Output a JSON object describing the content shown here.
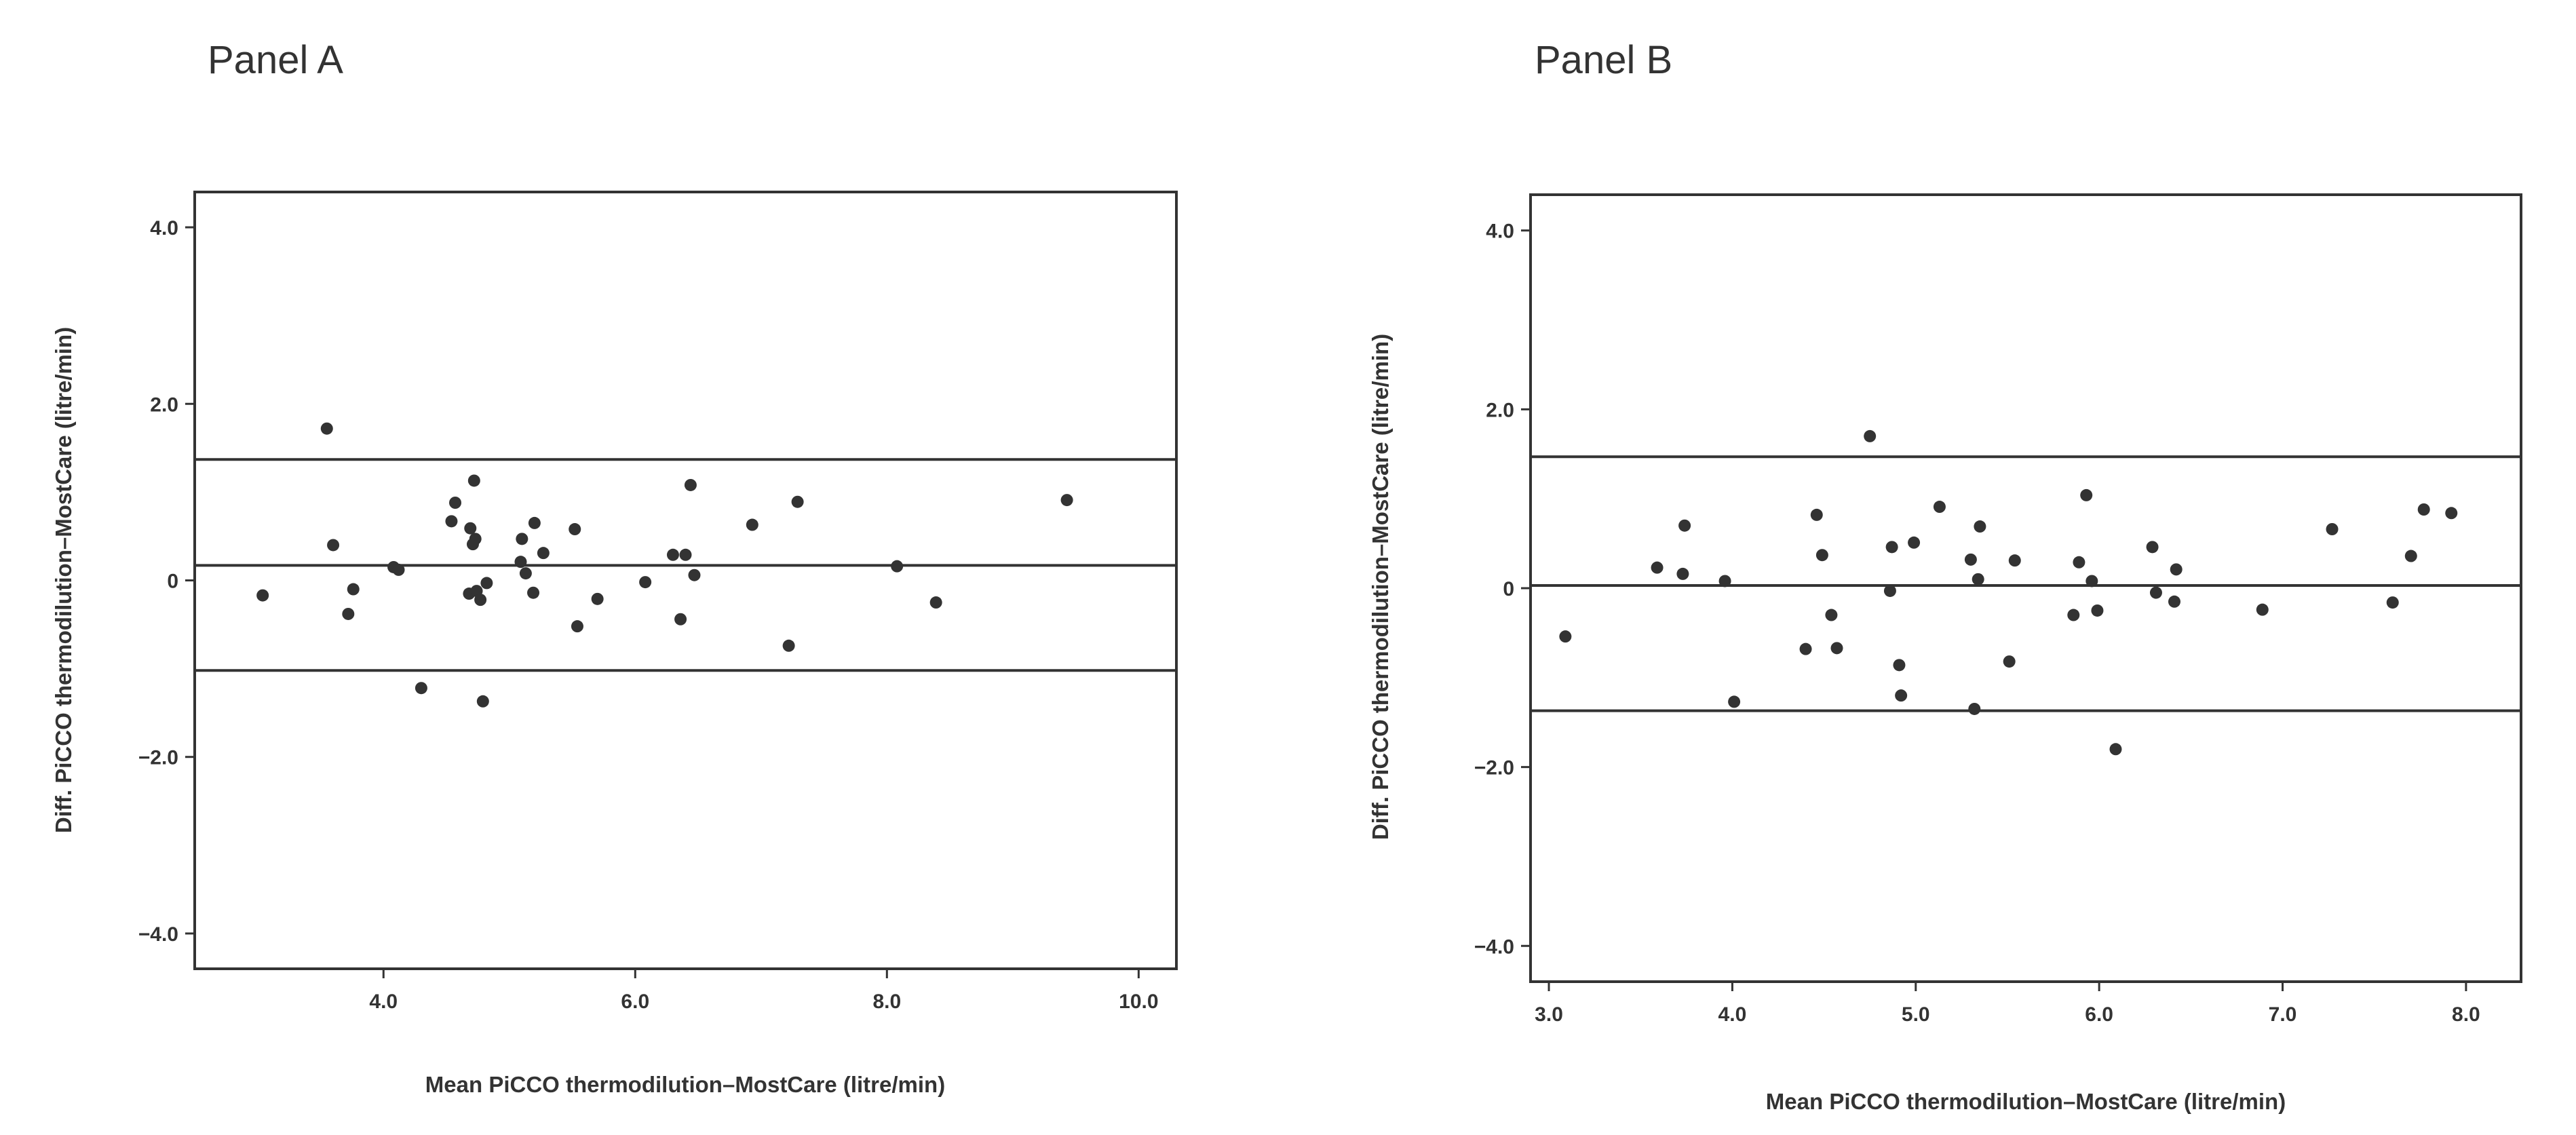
{
  "colors": {
    "ink": "#333333",
    "background": "#ffffff"
  },
  "chart_data": [
    {
      "type": "scatter",
      "panel_label": "Panel A",
      "xlabel": "Mean PiCCO thermodilution–MostCare (litre/min)",
      "ylabel": "Diff. PiCCO thermodilution–MostCare (litre/min)",
      "xlim": [
        2.5,
        10.3
      ],
      "ylim": [
        -4.4,
        4.4
      ],
      "xticks": [
        "4.0",
        "6.0",
        "8.0",
        "10.0"
      ],
      "yticks": [
        "4.0",
        "2.0",
        "0",
        "−2.0",
        "−4.0"
      ],
      "xtick_values": [
        4,
        6,
        8,
        10
      ],
      "ytick_values": [
        4,
        2,
        0,
        -2,
        -4
      ],
      "grid": false,
      "reference_lines": [
        1.37,
        0.17,
        -1.02
      ],
      "points": [
        [
          3.04,
          -0.17
        ],
        [
          3.55,
          1.72
        ],
        [
          3.6,
          0.4
        ],
        [
          3.72,
          -0.38
        ],
        [
          3.76,
          -0.1
        ],
        [
          4.08,
          0.15
        ],
        [
          4.12,
          0.12
        ],
        [
          4.3,
          -1.22
        ],
        [
          4.54,
          0.67
        ],
        [
          4.57,
          0.88
        ],
        [
          4.68,
          -0.15
        ],
        [
          4.69,
          0.59
        ],
        [
          4.71,
          0.41
        ],
        [
          4.72,
          1.13
        ],
        [
          4.73,
          0.47
        ],
        [
          4.74,
          -0.12
        ],
        [
          4.77,
          -0.22
        ],
        [
          4.79,
          -1.37
        ],
        [
          4.82,
          -0.03
        ],
        [
          5.09,
          0.21
        ],
        [
          5.1,
          0.47
        ],
        [
          5.13,
          0.08
        ],
        [
          5.19,
          -0.14
        ],
        [
          5.2,
          0.65
        ],
        [
          5.27,
          0.31
        ],
        [
          5.52,
          0.58
        ],
        [
          5.54,
          -0.52
        ],
        [
          5.7,
          -0.21
        ],
        [
          6.08,
          -0.02
        ],
        [
          6.3,
          0.29
        ],
        [
          6.36,
          -0.44
        ],
        [
          6.4,
          0.29
        ],
        [
          6.44,
          1.08
        ],
        [
          6.47,
          0.06
        ],
        [
          6.93,
          0.63
        ],
        [
          7.22,
          -0.74
        ],
        [
          7.29,
          0.89
        ],
        [
          8.08,
          0.16
        ],
        [
          8.39,
          -0.25
        ],
        [
          9.43,
          0.91
        ]
      ]
    },
    {
      "type": "scatter",
      "panel_label": "Panel B",
      "xlabel": "Mean PiCCO thermodilution–MostCare (litre/min)",
      "ylabel": "Diff. PiCCO thermodilution–MostCare (litre/min)",
      "xlim": [
        2.9,
        8.3
      ],
      "ylim": [
        -4.4,
        4.4
      ],
      "xticks": [
        "3.0",
        "4.0",
        "5.0",
        "6.0",
        "7.0",
        "8.0"
      ],
      "yticks": [
        "4.0",
        "2.0",
        "0",
        "−2.0",
        "−4.0"
      ],
      "xtick_values": [
        3,
        4,
        5,
        6,
        7,
        8
      ],
      "ytick_values": [
        4,
        2,
        0,
        -2,
        -4
      ],
      "grid": false,
      "reference_lines": [
        1.47,
        0.03,
        -1.37
      ],
      "points": [
        [
          3.09,
          -0.54
        ],
        [
          3.59,
          0.23
        ],
        [
          3.73,
          0.16
        ],
        [
          3.74,
          0.7
        ],
        [
          3.96,
          0.08
        ],
        [
          4.01,
          -1.27
        ],
        [
          4.4,
          -0.68
        ],
        [
          4.46,
          0.82
        ],
        [
          4.49,
          0.37
        ],
        [
          4.54,
          -0.3
        ],
        [
          4.57,
          -0.67
        ],
        [
          4.75,
          1.7
        ],
        [
          4.86,
          -0.03
        ],
        [
          4.87,
          0.46
        ],
        [
          4.91,
          -0.86
        ],
        [
          4.92,
          -1.2
        ],
        [
          4.99,
          0.51
        ],
        [
          5.13,
          0.91
        ],
        [
          5.3,
          0.32
        ],
        [
          5.32,
          -1.35
        ],
        [
          5.34,
          0.1
        ],
        [
          5.35,
          0.69
        ],
        [
          5.51,
          -0.82
        ],
        [
          5.54,
          0.31
        ],
        [
          5.86,
          -0.3
        ],
        [
          5.89,
          0.29
        ],
        [
          5.93,
          1.04
        ],
        [
          5.96,
          0.08
        ],
        [
          5.99,
          -0.25
        ],
        [
          6.09,
          -1.8
        ],
        [
          6.29,
          0.46
        ],
        [
          6.31,
          -0.05
        ],
        [
          6.41,
          -0.15
        ],
        [
          6.42,
          0.21
        ],
        [
          6.89,
          -0.24
        ],
        [
          7.27,
          0.66
        ],
        [
          7.6,
          -0.16
        ],
        [
          7.7,
          0.36
        ],
        [
          7.77,
          0.88
        ],
        [
          7.92,
          0.84
        ]
      ]
    }
  ]
}
